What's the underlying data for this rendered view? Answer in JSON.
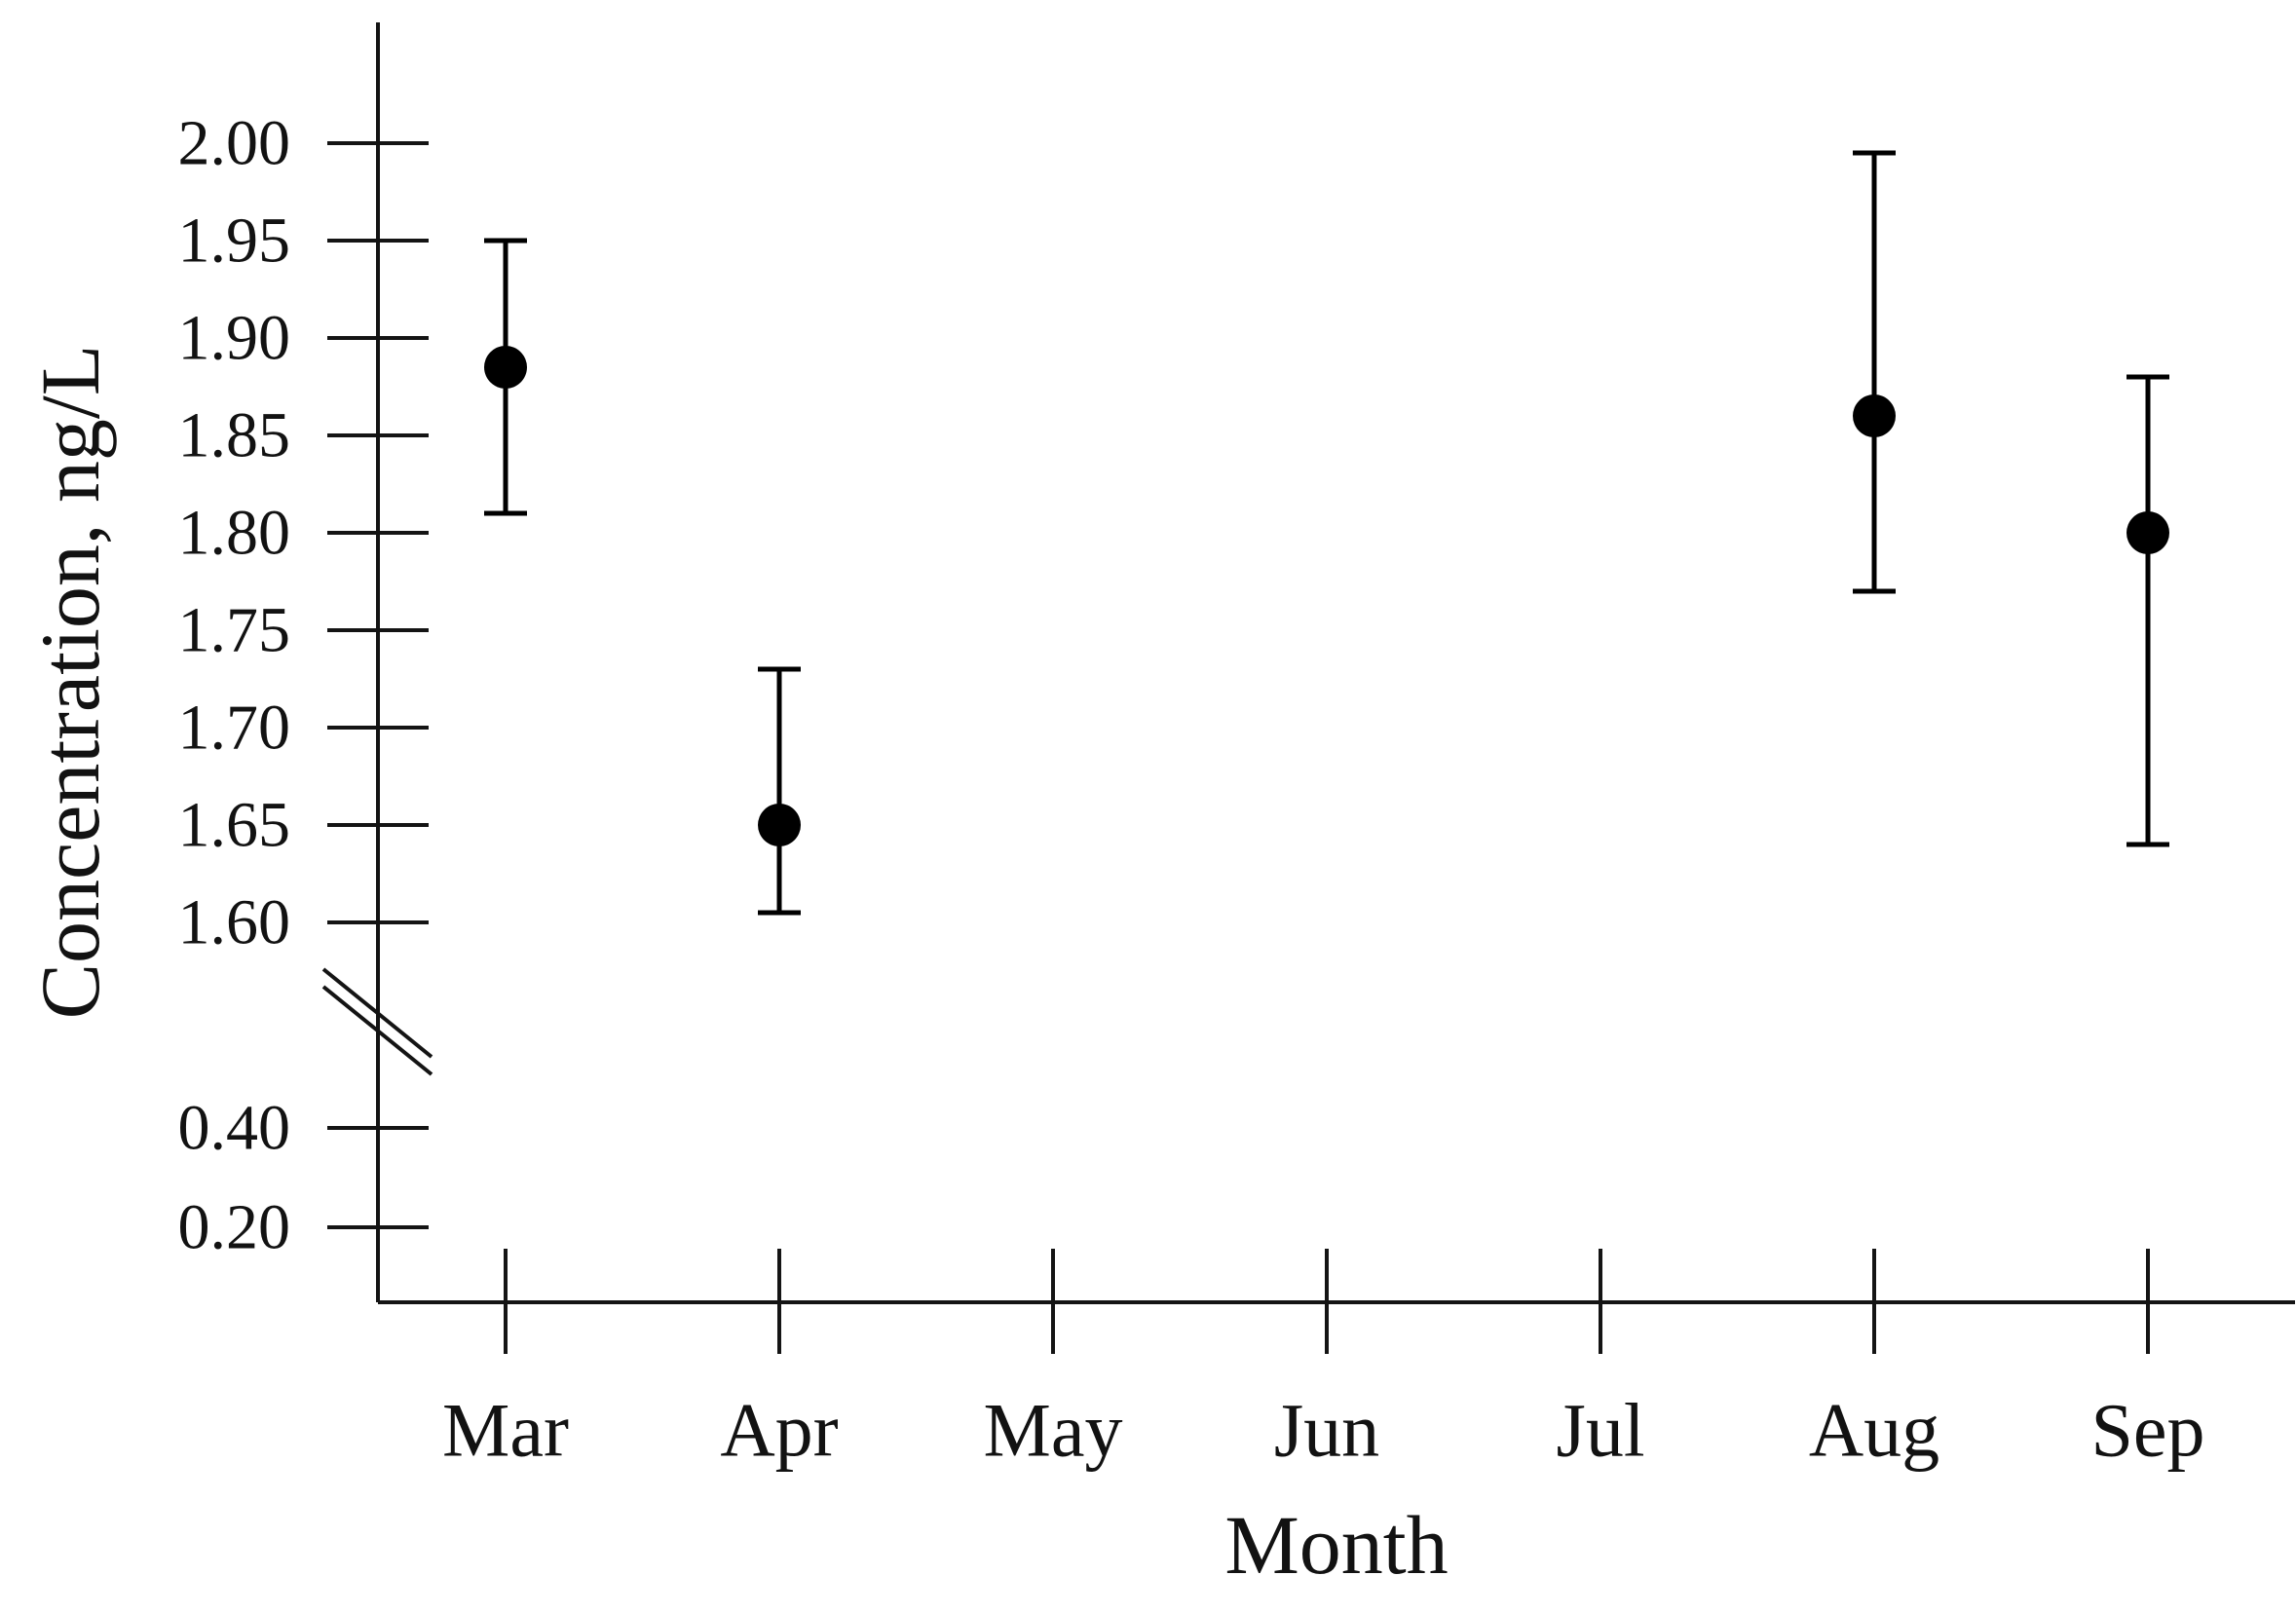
{
  "figure": {
    "background_color": "#ffffff",
    "ink_color": "#141414",
    "marker_color": "#000000"
  },
  "chart_data": {
    "type": "scatter",
    "title": "",
    "xlabel": "Month",
    "ylabel": "Concentration, ng/L",
    "categories": [
      "Mar",
      "Apr",
      "May",
      "Jun",
      "Jul",
      "Aug",
      "Sep"
    ],
    "series": [
      {
        "name": "Concentration",
        "marker": "filled-circle",
        "color": "#000000",
        "error_bars": true,
        "points": [
          {
            "x": "Mar",
            "y": 1.885,
            "err_low": 1.81,
            "err_high": 1.95
          },
          {
            "x": "Apr",
            "y": 1.65,
            "err_low": 1.605,
            "err_high": 1.73
          },
          {
            "x": "Aug",
            "y": 1.86,
            "err_low": 1.77,
            "err_high": 1.995
          },
          {
            "x": "Sep",
            "y": 1.8,
            "err_low": 1.64,
            "err_high": 1.88
          }
        ]
      }
    ],
    "x_axis": {
      "tick_labels": [
        "Mar",
        "Apr",
        "May",
        "Jun",
        "Jul",
        "Aug",
        "Sep"
      ]
    },
    "y_axis": {
      "axis_break": true,
      "upper_segment": {
        "ticks": [
          2.0,
          1.95,
          1.9,
          1.85,
          1.8,
          1.75,
          1.7,
          1.65,
          1.6
        ],
        "range": [
          1.575,
          2.06
        ]
      },
      "lower_segment": {
        "ticks": [
          0.4,
          0.2
        ],
        "range": [
          0.05,
          0.55
        ]
      },
      "tick_label_format": "0.00"
    },
    "grid": false,
    "legend": false
  }
}
